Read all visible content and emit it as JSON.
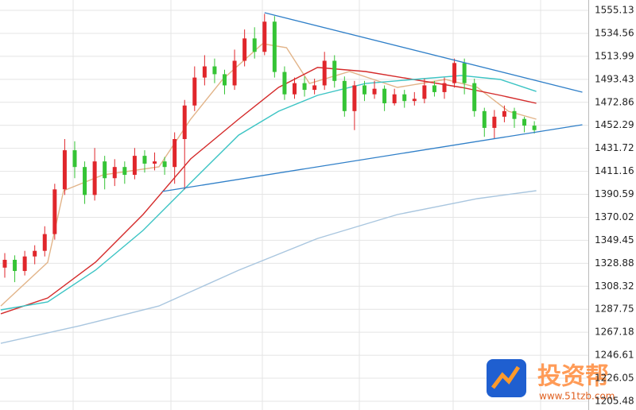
{
  "chart_data": {
    "type": "candlestick",
    "up_color": "#e0262b",
    "down_color": "#35c435",
    "xlim": [
      -0.477,
      58.4
    ],
    "ylim": [
      1197.66,
      1564.37
    ],
    "yticks": [
      1555.13,
      1534.56,
      1513.99,
      1493.43,
      1472.86,
      1452.29,
      1431.72,
      1411.16,
      1390.59,
      1370.02,
      1349.45,
      1328.88,
      1308.32,
      1287.75,
      1267.18,
      1246.61,
      1226.05,
      1205.48
    ],
    "grid": true,
    "x": [
      0,
      1,
      2,
      3,
      4,
      5,
      6,
      7,
      8,
      9,
      10,
      11,
      12,
      13,
      14,
      15,
      16,
      17,
      18,
      19,
      20,
      21,
      22,
      23,
      24,
      25,
      26,
      27,
      28,
      29,
      30,
      31,
      32,
      33,
      34,
      35,
      36,
      37,
      38,
      39,
      40,
      41,
      42,
      43,
      44,
      45,
      46,
      47,
      48,
      49,
      50,
      51,
      52,
      53
    ],
    "open": [
      1325,
      1332,
      1322,
      1335,
      1340,
      1355,
      1395,
      1430,
      1415,
      1390,
      1420,
      1405,
      1415,
      1408,
      1425,
      1418,
      1420,
      1415,
      1440,
      1470,
      1495,
      1505,
      1498,
      1488,
      1510,
      1530,
      1518,
      1545,
      1500,
      1480,
      1490,
      1484,
      1488,
      1510,
      1492,
      1465,
      1488,
      1480,
      1485,
      1472,
      1480,
      1474,
      1476,
      1488,
      1482,
      1490,
      1508,
      1490,
      1465,
      1450,
      1460,
      1465,
      1458,
      1452
    ],
    "high": [
      1338,
      1336,
      1340,
      1345,
      1362,
      1400,
      1440,
      1438,
      1420,
      1432,
      1425,
      1422,
      1420,
      1432,
      1430,
      1428,
      1424,
      1446,
      1475,
      1505,
      1515,
      1512,
      1502,
      1520,
      1538,
      1540,
      1552,
      1550,
      1505,
      1495,
      1496,
      1494,
      1518,
      1515,
      1496,
      1492,
      1492,
      1492,
      1488,
      1485,
      1484,
      1482,
      1494,
      1492,
      1495,
      1512,
      1512,
      1494,
      1468,
      1466,
      1470,
      1468,
      1460,
      1456
    ],
    "low": [
      1316,
      1312,
      1318,
      1328,
      1335,
      1350,
      1390,
      1405,
      1382,
      1385,
      1395,
      1398,
      1400,
      1404,
      1410,
      1412,
      1408,
      1400,
      1395,
      1465,
      1488,
      1490,
      1480,
      1484,
      1505,
      1512,
      1515,
      1495,
      1475,
      1476,
      1478,
      1480,
      1484,
      1486,
      1460,
      1448,
      1474,
      1476,
      1465,
      1470,
      1468,
      1470,
      1472,
      1478,
      1476,
      1486,
      1480,
      1460,
      1442,
      1440,
      1455,
      1450,
      1446,
      1445
    ],
    "close": [
      1332,
      1322,
      1335,
      1340,
      1355,
      1395,
      1430,
      1415,
      1390,
      1420,
      1405,
      1415,
      1408,
      1425,
      1418,
      1420,
      1415,
      1440,
      1470,
      1495,
      1505,
      1498,
      1488,
      1510,
      1530,
      1518,
      1545,
      1500,
      1480,
      1490,
      1484,
      1488,
      1510,
      1492,
      1465,
      1488,
      1480,
      1485,
      1472,
      1480,
      1474,
      1476,
      1488,
      1482,
      1490,
      1508,
      1490,
      1465,
      1450,
      1460,
      1465,
      1458,
      1452,
      1448
    ],
    "lines": [
      {
        "color": "#e2b489",
        "x": [
          -0.4,
          4.3,
          5.89,
          9.86,
          15.43,
          18.6,
          21.8,
          25.8,
          28.2,
          30.5,
          34.5,
          39.3,
          44.1,
          47.3,
          50.4,
          53.2
        ],
        "values": [
          1290.7,
          1329.8,
          1393.8,
          1408.0,
          1415.1,
          1457.8,
          1493.3,
          1525.3,
          1521.7,
          1489.7,
          1500.4,
          1486.2,
          1493.3,
          1486.2,
          1464.9,
          1457.8
        ]
      },
      {
        "color": "#d42a2a",
        "x": [
          -0.4,
          4.3,
          9.07,
          13.84,
          18.6,
          23.4,
          27.4,
          31.3,
          36.1,
          40.9,
          45.7,
          49.6,
          53.2
        ],
        "values": [
          1283.7,
          1297.9,
          1329.8,
          1372.5,
          1422.2,
          1457.8,
          1486.2,
          1504.0,
          1500.4,
          1493.3,
          1486.2,
          1479.1,
          1472.0
        ]
      },
      {
        "color": "#3cc4c4",
        "x": [
          -0.4,
          4.3,
          9.07,
          13.84,
          18.6,
          23.4,
          27.4,
          31.3,
          36.1,
          40.9,
          45.7,
          49.6,
          53.2
        ],
        "values": [
          1287.2,
          1294.3,
          1322.7,
          1358.3,
          1400.9,
          1443.5,
          1464.9,
          1479.1,
          1489.7,
          1493.3,
          1496.8,
          1493.3,
          1482.6
        ]
      },
      {
        "color": "#a9c6df",
        "x": [
          -0.4,
          7.48,
          15.43,
          23.4,
          31.3,
          39.3,
          47.3,
          53.2
        ],
        "values": [
          1257.3,
          1272.9,
          1290.7,
          1322.7,
          1351.1,
          1372.5,
          1386.7,
          1393.8
        ]
      }
    ],
    "trendlines": [
      {
        "color": "#2f7fc8",
        "x": [
          26.0,
          57.8
        ],
        "values": [
          1553.0,
          1481.9
        ]
      },
      {
        "color": "#2f7fc8",
        "x": [
          15.75,
          57.8
        ],
        "values": [
          1393.1,
          1452.8
        ]
      }
    ],
    "watermark": {
      "name": "投资帮",
      "url": "www.51tzb.com"
    }
  }
}
